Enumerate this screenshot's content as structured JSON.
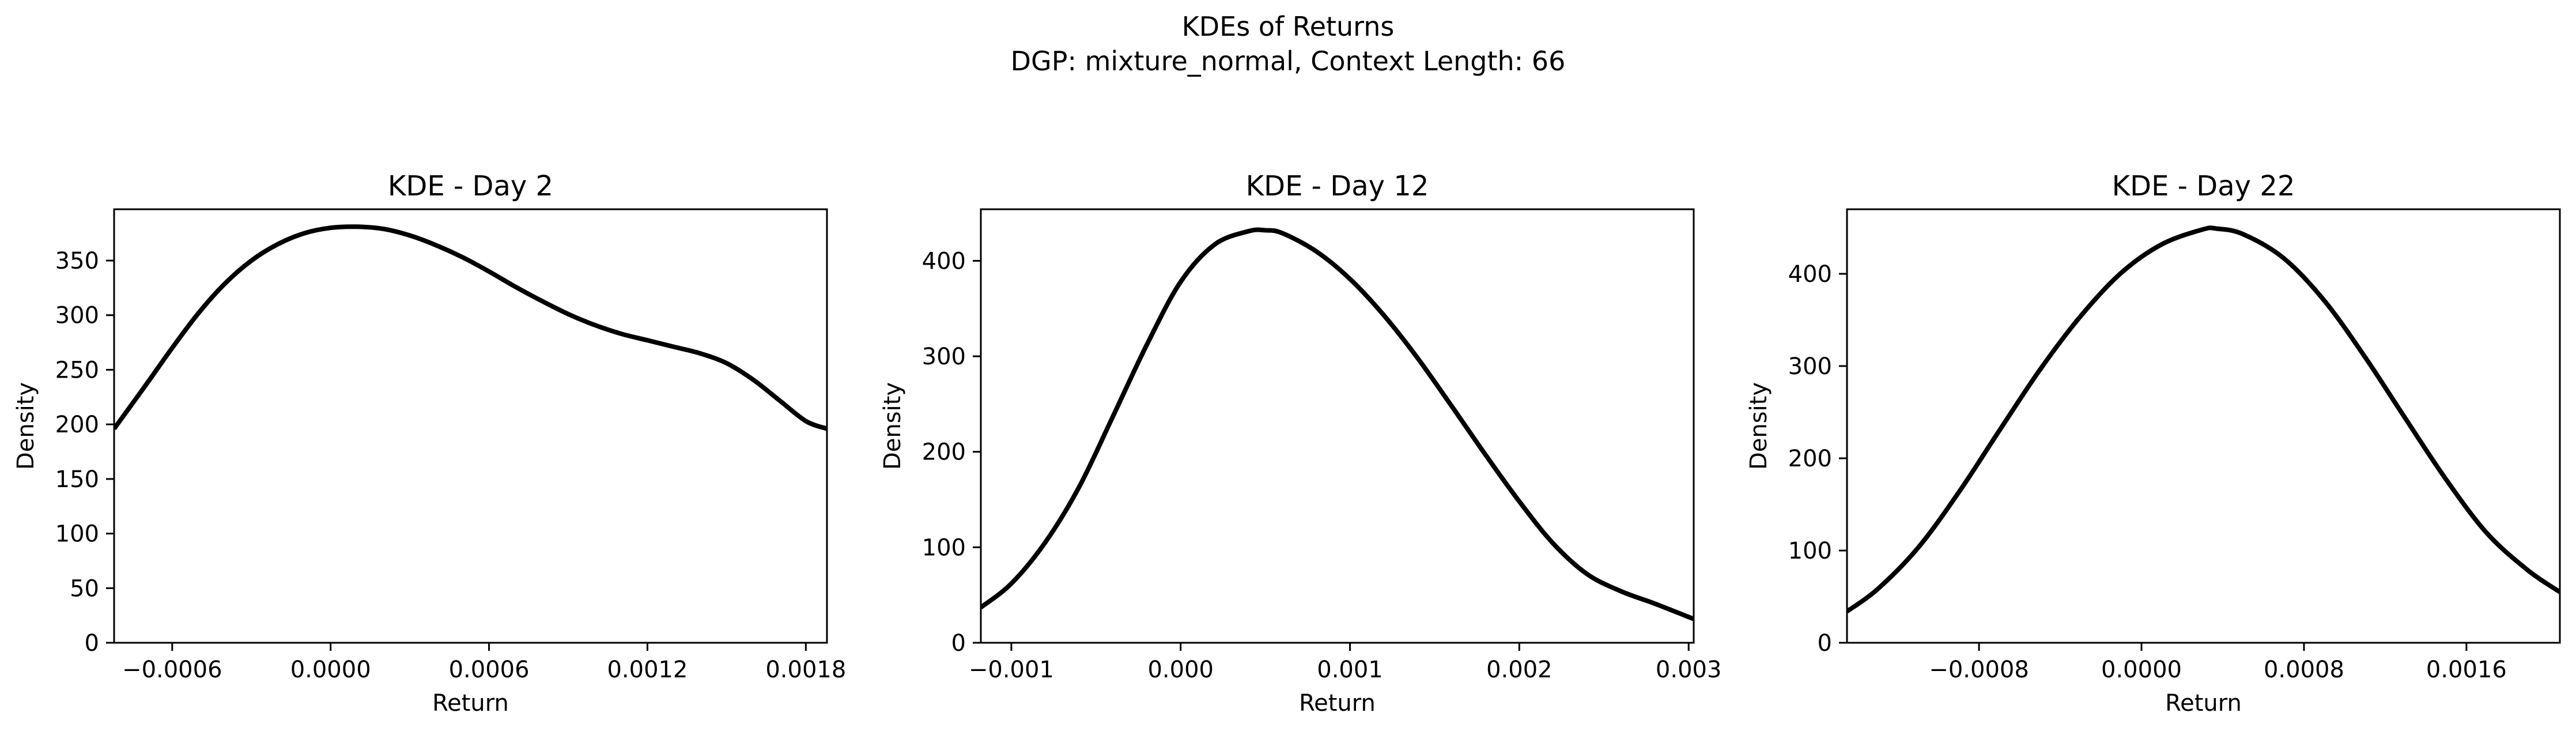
{
  "figure": {
    "suptitle_line1": "KDEs of Returns",
    "suptitle_line2": "DGP: mixture_normal, Context Length: 66"
  },
  "colors": {
    "line": "#000000",
    "axes": "#000000",
    "background": "#ffffff"
  },
  "chart_data": [
    {
      "type": "line",
      "title": "KDE - Day 2",
      "xlabel": "Return",
      "ylabel": "Density",
      "xlim": [
        -0.00082,
        0.00188
      ],
      "ylim": [
        0,
        397
      ],
      "xticks": [
        -0.0006,
        0.0,
        0.0006,
        0.0012,
        0.0018
      ],
      "xtick_labels": [
        "−0.0006",
        "0.0000",
        "0.0006",
        "0.0012",
        "0.0018"
      ],
      "yticks": [
        0,
        50,
        100,
        150,
        200,
        250,
        300,
        350
      ],
      "ytick_labels": [
        "0",
        "50",
        "100",
        "150",
        "200",
        "250",
        "300",
        "350"
      ],
      "grid": false,
      "series": [
        {
          "x": [
            -0.00082,
            -0.0007,
            -0.0006,
            -0.0005,
            -0.0004,
            -0.0003,
            -0.0002,
            -0.0001,
            0.0,
            0.0001,
            0.0002,
            0.0003,
            0.0004,
            0.0005,
            0.0006,
            0.0007,
            0.0008,
            0.0009,
            0.001,
            0.0011,
            0.0012,
            0.0013,
            0.0014,
            0.0015,
            0.0016,
            0.0017,
            0.0018,
            0.00188
          ],
          "y": [
            196,
            236,
            270,
            302,
            329,
            350,
            365,
            375,
            380,
            381,
            379,
            373,
            364,
            353,
            340,
            326,
            313,
            301,
            291,
            283,
            277,
            271,
            265,
            256,
            241,
            222,
            203,
            196
          ]
        }
      ]
    },
    {
      "type": "line",
      "title": "KDE - Day 12",
      "xlabel": "Return",
      "ylabel": "Density",
      "xlim": [
        -0.00118,
        0.00303
      ],
      "ylim": [
        0,
        454
      ],
      "xticks": [
        -0.001,
        0.0,
        0.001,
        0.002,
        0.003
      ],
      "xtick_labels": [
        "−0.001",
        "0.000",
        "0.001",
        "0.002",
        "0.003"
      ],
      "yticks": [
        0,
        100,
        200,
        300,
        400
      ],
      "ytick_labels": [
        "0",
        "100",
        "200",
        "300",
        "400"
      ],
      "grid": false,
      "series": [
        {
          "x": [
            -0.00118,
            -0.001,
            -0.0008,
            -0.0006,
            -0.0004,
            -0.0002,
            0.0,
            0.0002,
            0.0004,
            0.0005,
            0.0006,
            0.0008,
            0.001,
            0.0012,
            0.0014,
            0.0016,
            0.0018,
            0.002,
            0.0022,
            0.0024,
            0.0026,
            0.0028,
            0.003,
            0.00303
          ],
          "y": [
            37,
            62,
            105,
            163,
            237,
            312,
            378,
            417,
            431,
            432,
            429,
            410,
            381,
            343,
            298,
            248,
            197,
            148,
            104,
            72,
            54,
            41,
            27,
            25
          ]
        }
      ]
    },
    {
      "type": "line",
      "title": "KDE - Day 22",
      "xlabel": "Return",
      "ylabel": "Density",
      "xlim": [
        -0.00145,
        0.00206
      ],
      "ylim": [
        0,
        470
      ],
      "xticks": [
        -0.0008,
        0.0,
        0.0008,
        0.0016
      ],
      "xtick_labels": [
        "−0.0008",
        "0.0000",
        "0.0008",
        "0.0016"
      ],
      "yticks": [
        0,
        100,
        200,
        300,
        400
      ],
      "ytick_labels": [
        "0",
        "100",
        "200",
        "300",
        "400"
      ],
      "grid": false,
      "series": [
        {
          "x": [
            -0.00145,
            -0.0013,
            -0.0011,
            -0.0009,
            -0.0007,
            -0.0005,
            -0.0003,
            -0.0001,
            0.0001,
            0.0003,
            0.00037,
            0.0005,
            0.0007,
            0.0009,
            0.0011,
            0.0013,
            0.0015,
            0.0017,
            0.0019,
            0.00206
          ],
          "y": [
            34,
            58,
            103,
            163,
            230,
            296,
            354,
            401,
            432,
            448,
            449,
            443,
            417,
            371,
            310,
            243,
            177,
            119,
            79,
            55
          ]
        }
      ]
    }
  ]
}
